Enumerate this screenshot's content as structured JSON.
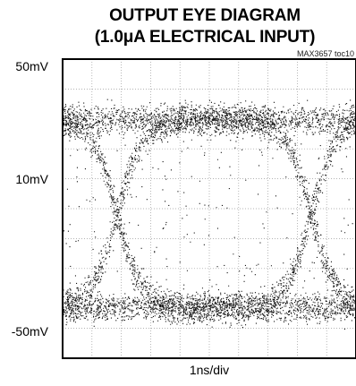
{
  "chart_data": {
    "type": "scatter",
    "title_line1": "OUTPUT EYE DIAGRAM",
    "title_line2": "(1.0μA ELECTRICAL INPUT)",
    "annotation": "MAX3657 toc10",
    "xlabel": "1ns/div",
    "y_tick_labels": [
      "50mV",
      "10mV",
      "-50mV"
    ],
    "y_ticks": [
      50,
      10,
      -50
    ],
    "ylim": [
      -50,
      50
    ],
    "xlim": [
      0,
      10
    ],
    "x_divisions": 10,
    "y_divisions": 10,
    "grid": true,
    "series": [
      {
        "levels": {
          "high_mV": 30,
          "low_mV": -33
        },
        "crossings_ns": [
          1.85,
          8.45
        ],
        "crossing_level_mV": 0
      }
    ]
  }
}
